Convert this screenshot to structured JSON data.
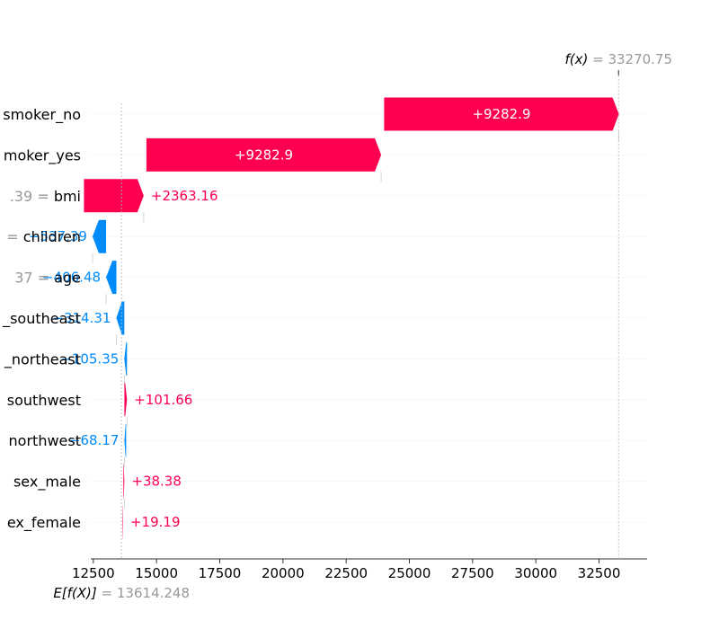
{
  "chart_data": {
    "type": "waterfall",
    "fx_label": "f(x)",
    "fx_value": "33270.75",
    "ex_label": "E[f(X)]",
    "ex_value": "13614.248",
    "xlim": [
      12400,
      34400
    ],
    "xticks": [
      "12500",
      "15000",
      "17500",
      "20000",
      "22500",
      "25000",
      "27500",
      "30000",
      "32500"
    ],
    "colors": {
      "positive": "#ff0051",
      "negative": "#008bfb",
      "value_text": "#999999"
    },
    "features": [
      {
        "value_label": "",
        "feature": "smoker_no",
        "start": 24000,
        "end": 33282.9,
        "label": "+9282.9"
      },
      {
        "value_label": "",
        "feature": "moker_yes",
        "start": 14600,
        "end": 23882.9,
        "label": "+9282.9"
      },
      {
        "value_label": ".39",
        "feature": "bmi",
        "start": 12130,
        "end": 14493.16,
        "label": "+2363.16"
      },
      {
        "value_label": "",
        "feature": "children",
        "start": 13006.39,
        "end": 12469,
        "label": "−537.39"
      },
      {
        "value_label": "37",
        "feature": "age",
        "start": 13412.48,
        "end": 13006,
        "label": "−406.48"
      },
      {
        "value_label": "",
        "feature": "_southeast",
        "start": 13726.31,
        "end": 13412,
        "label": "−314.31"
      },
      {
        "value_label": "",
        "feature": "_northeast",
        "start": 13831.35,
        "end": 13726,
        "label": "−105.35"
      },
      {
        "value_label": "",
        "feature": "southwest",
        "start": 13730,
        "end": 13831.66,
        "label": "+101.66"
      },
      {
        "value_label": "",
        "feature": "northwest",
        "start": 13798.17,
        "end": 13730,
        "label": "−68.17"
      },
      {
        "value_label": "",
        "feature": "sex_male",
        "start": 13690,
        "end": 13728.38,
        "label": "+38.38"
      },
      {
        "value_label": "",
        "feature": "ex_female",
        "start": 13660,
        "end": 13679.19,
        "label": "+19.19"
      }
    ]
  }
}
